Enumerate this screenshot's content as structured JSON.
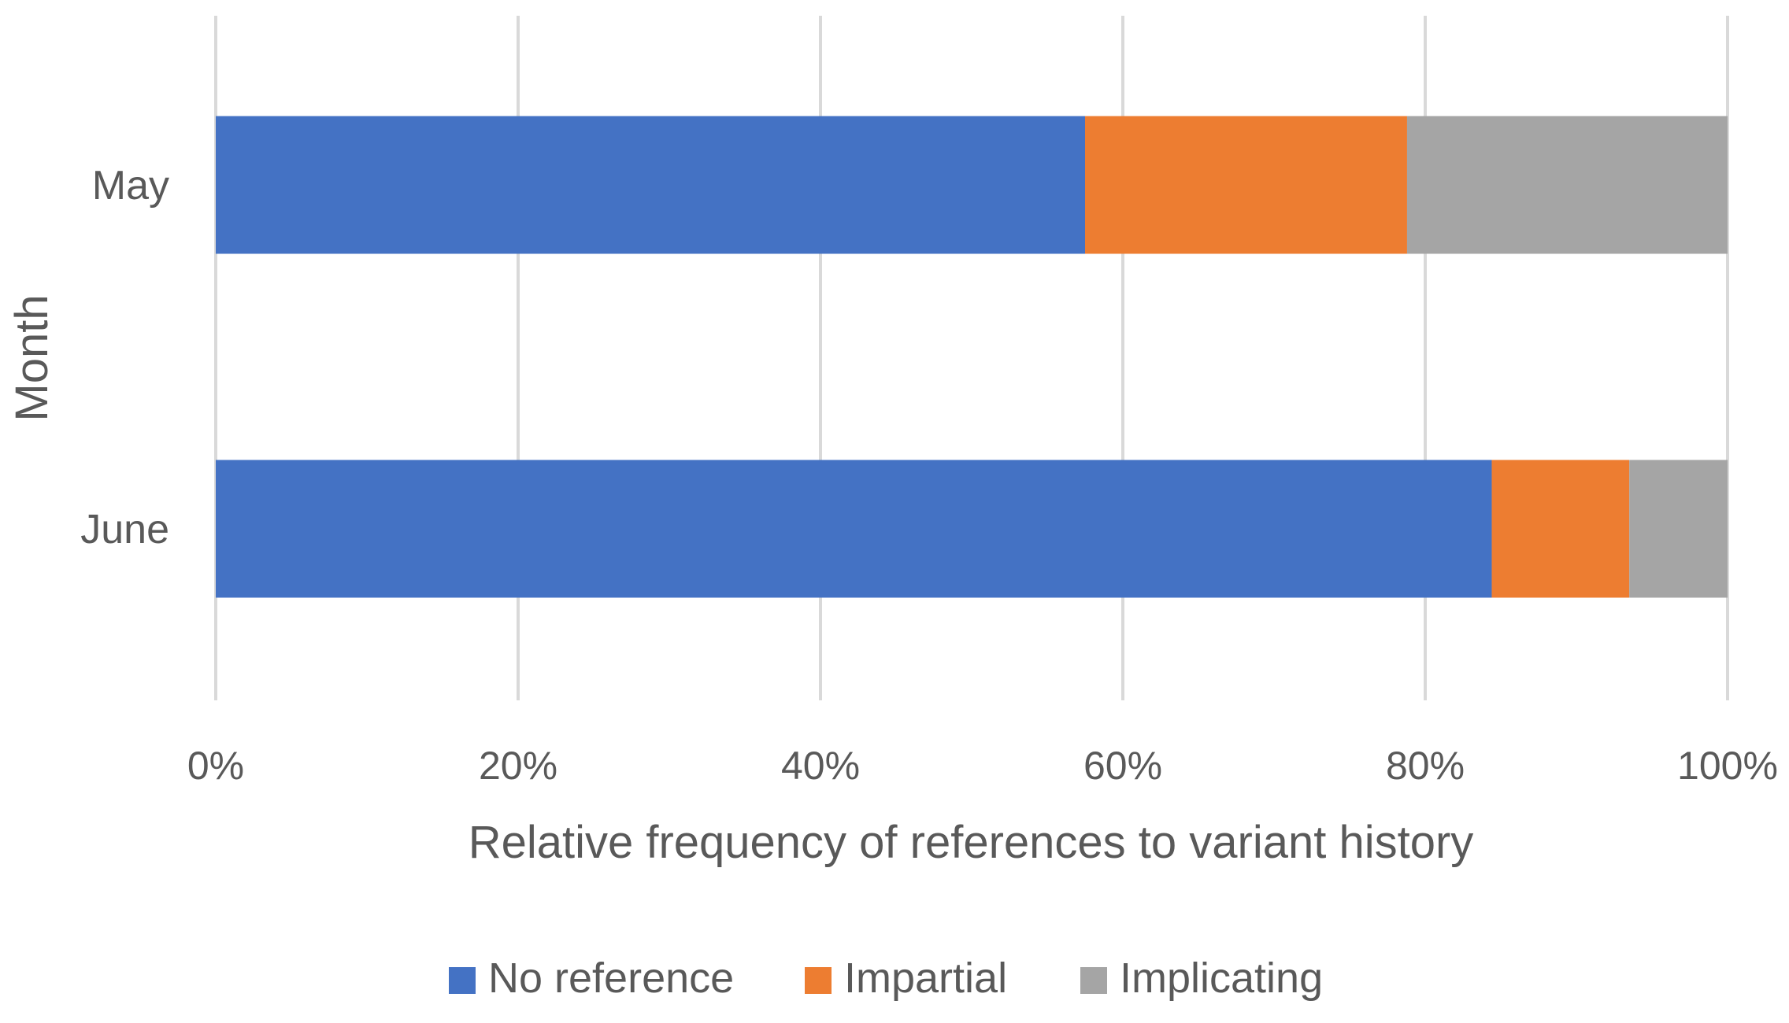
{
  "chart_data": {
    "type": "bar",
    "orientation": "horizontal",
    "stacked": "percent",
    "categories": [
      "May",
      "June"
    ],
    "series": [
      {
        "name": "No reference",
        "values": [
          57.5,
          84.4
        ],
        "color": "#4472C4"
      },
      {
        "name": "Impartial",
        "values": [
          21.3,
          9.1
        ],
        "color": "#ED7D31"
      },
      {
        "name": "Implicating",
        "values": [
          21.2,
          6.5
        ],
        "color": "#A5A5A5"
      }
    ],
    "x_ticks": [
      "0%",
      "20%",
      "40%",
      "60%",
      "80%",
      "100%"
    ],
    "xlim": [
      0,
      100
    ],
    "xlabel": "Relative frequency of references to variant history",
    "ylabel": "Month",
    "grid": true,
    "legend": "bottom"
  }
}
